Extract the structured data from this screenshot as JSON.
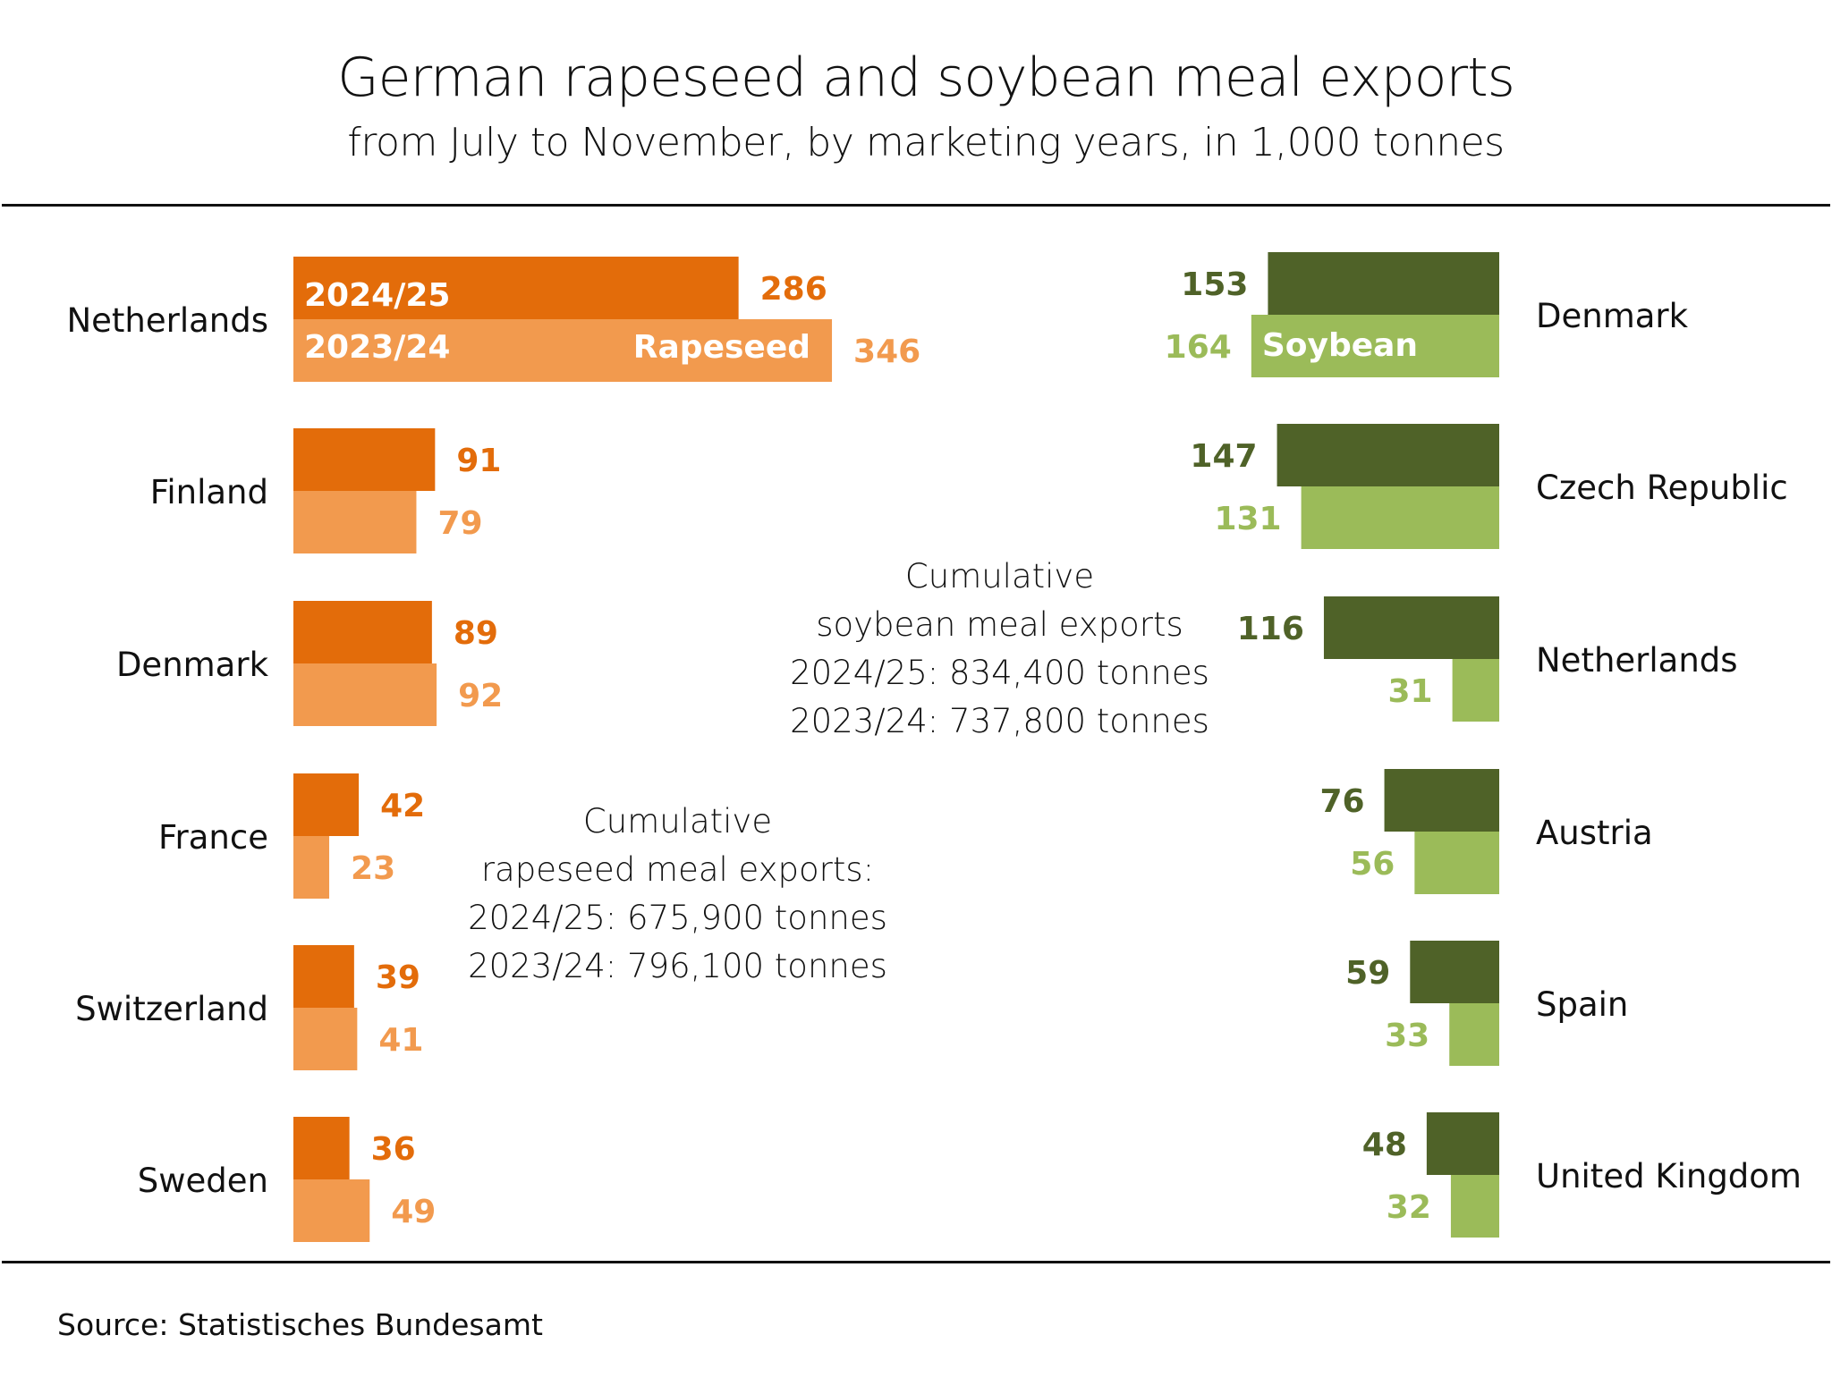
{
  "header": {
    "title": "German rapeseed and soybean meal exports",
    "subtitle": "from July to November, by marketing years, in 1,000 tonnes"
  },
  "source": "Source:  Statistisches Bundesamt",
  "colors": {
    "rapeseed_2024_25": "#e36c0a",
    "rapeseed_2023_24": "#f29a4e",
    "soybean_2024_25": "#4f6228",
    "soybean_2023_24": "#9bbb59"
  },
  "annotations": {
    "soybean": [
      "Cumulative",
      "soybean meal exports",
      "2024/25: 834,400 tonnes",
      "2023/24: 737,800 tonnes"
    ],
    "rapeseed": [
      "Cumulative",
      "rapeseed meal exports:",
      "2024/25: 675,900 tonnes",
      "2023/24: 796,100 tonnes"
    ]
  },
  "chart_data": [
    {
      "type": "bar",
      "orientation": "horizontal",
      "title": "Rapeseed",
      "series_labels_in_bars": [
        "2024/25",
        "2023/24"
      ],
      "in_bar_label": "Rapeseed",
      "categories": [
        "Netherlands",
        "Finland",
        "Denmark",
        "France",
        "Switzerland",
        "Sweden"
      ],
      "series": [
        {
          "name": "2024/25",
          "values": [
            286,
            91,
            89,
            42,
            39,
            36
          ]
        },
        {
          "name": "2023/24",
          "values": [
            346,
            79,
            92,
            23,
            41,
            49
          ]
        }
      ],
      "unit": "1,000 tonnes"
    },
    {
      "type": "bar",
      "orientation": "horizontal-reversed",
      "title": "Soybean",
      "in_bar_label": "Soybean",
      "categories": [
        "Denmark",
        "Czech Republic",
        "Netherlands",
        "Austria",
        "Spain",
        "United Kingdom"
      ],
      "series": [
        {
          "name": "2024/25",
          "values": [
            153,
            147,
            116,
            76,
            59,
            48
          ]
        },
        {
          "name": "2023/24",
          "values": [
            164,
            131,
            31,
            56,
            33,
            32
          ]
        }
      ],
      "unit": "1,000 tonnes"
    }
  ]
}
